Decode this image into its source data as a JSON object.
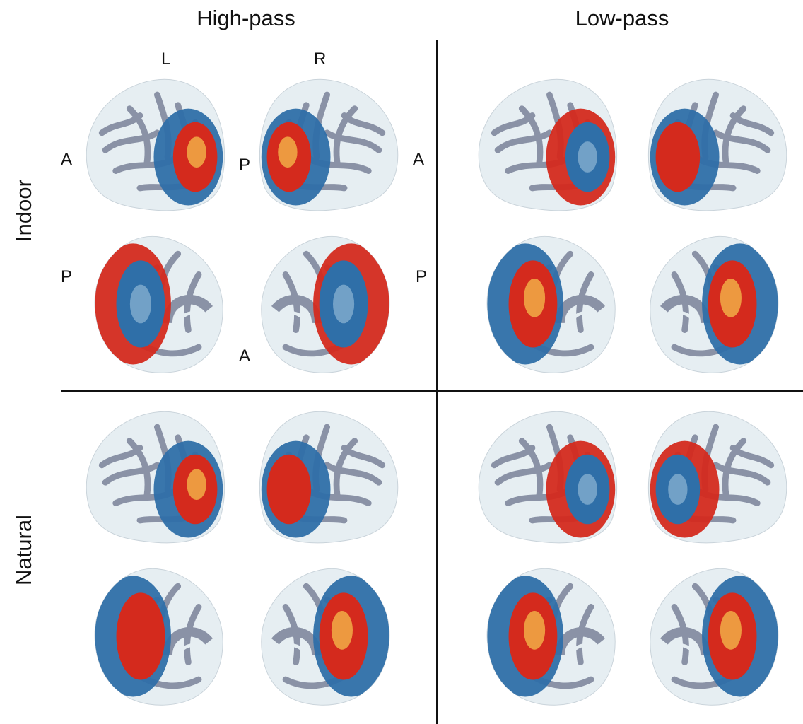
{
  "columns": [
    {
      "key": "highpass",
      "label": "High-pass"
    },
    {
      "key": "lowpass",
      "label": "Low-pass"
    }
  ],
  "rows": [
    {
      "key": "indoor",
      "label": "Indoor"
    },
    {
      "key": "natural",
      "label": "Natural"
    }
  ],
  "orientation_labels": {
    "left_hemisphere": "L",
    "right_hemisphere": "R",
    "anterior": "A",
    "posterior": "P"
  },
  "colors": {
    "sulci": "#8a92a6",
    "gyri": "#e6eef2",
    "positive": "#d42a1d",
    "positive_peak": "#f2b54a",
    "negative": "#2f6fa8",
    "negative_light": "#8fb6d4",
    "divider": "#111111"
  },
  "panels": [
    {
      "col": "highpass",
      "row": "indoor",
      "lateral_left": "red-large",
      "lateral_right": "red-large",
      "medial_left": "blue-dominant",
      "medial_right": "blue-dominant"
    },
    {
      "col": "lowpass",
      "row": "indoor",
      "lateral_left": "blue-dominant",
      "lateral_right": "mixed",
      "medial_left": "red-dominant",
      "medial_right": "red-dominant"
    },
    {
      "col": "highpass",
      "row": "natural",
      "lateral_left": "red-dominant",
      "lateral_right": "mixed",
      "medial_left": "mixed",
      "medial_right": "red-dominant"
    },
    {
      "col": "lowpass",
      "row": "natural",
      "lateral_left": "blue-dominant",
      "lateral_right": "blue-dominant",
      "medial_left": "red-dominant",
      "medial_right": "red-dominant"
    }
  ]
}
